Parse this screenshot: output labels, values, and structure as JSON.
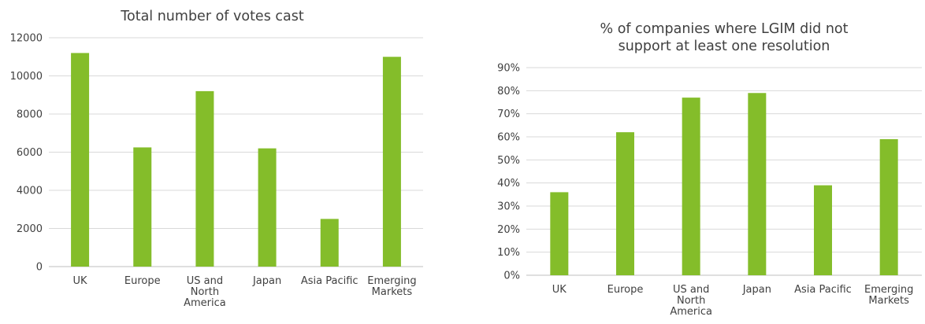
{
  "chart_data": [
    {
      "type": "bar",
      "title": "Total number of votes cast",
      "categories": [
        "UK",
        "Europe",
        "US and North America",
        "Japan",
        "Asia Pacific",
        "Emerging Markets"
      ],
      "category_lines": [
        [
          "UK"
        ],
        [
          "Europe"
        ],
        [
          "US and",
          "North",
          "America"
        ],
        [
          "Japan"
        ],
        [
          "Asia Pacific"
        ],
        [
          "Emerging",
          "Markets"
        ]
      ],
      "values": [
        11200,
        6250,
        9200,
        6200,
        2500,
        11000
      ],
      "ylim": [
        0,
        12000
      ],
      "yticks": [
        0,
        2000,
        4000,
        6000,
        8000,
        10000,
        12000
      ],
      "ytick_labels": [
        "0",
        "2000",
        "4000",
        "6000",
        "8000",
        "10000",
        "12000"
      ],
      "xlabel": "",
      "ylabel": "",
      "grid": true,
      "bar_color": "#84bd2a"
    },
    {
      "type": "bar",
      "title": "% of companies where LGIM did not support at least one resolution",
      "title_lines": [
        "% of companies where LGIM did not",
        "support at least one resolution"
      ],
      "categories": [
        "UK",
        "Europe",
        "US and North America",
        "Japan",
        "Asia Pacific",
        "Emerging Markets"
      ],
      "category_lines": [
        [
          "UK"
        ],
        [
          "Europe"
        ],
        [
          "US and",
          "North",
          "America"
        ],
        [
          "Japan"
        ],
        [
          "Asia Pacific"
        ],
        [
          "Emerging",
          "Markets"
        ]
      ],
      "values": [
        36,
        62,
        77,
        79,
        39,
        59
      ],
      "ylim": [
        0,
        90
      ],
      "yticks": [
        0,
        10,
        20,
        30,
        40,
        50,
        60,
        70,
        80,
        90
      ],
      "ytick_labels": [
        "0%",
        "10%",
        "20%",
        "30%",
        "40%",
        "50%",
        "60%",
        "70%",
        "80%",
        "90%"
      ],
      "xlabel": "",
      "ylabel": "",
      "grid": true,
      "bar_color": "#84bd2a"
    }
  ]
}
